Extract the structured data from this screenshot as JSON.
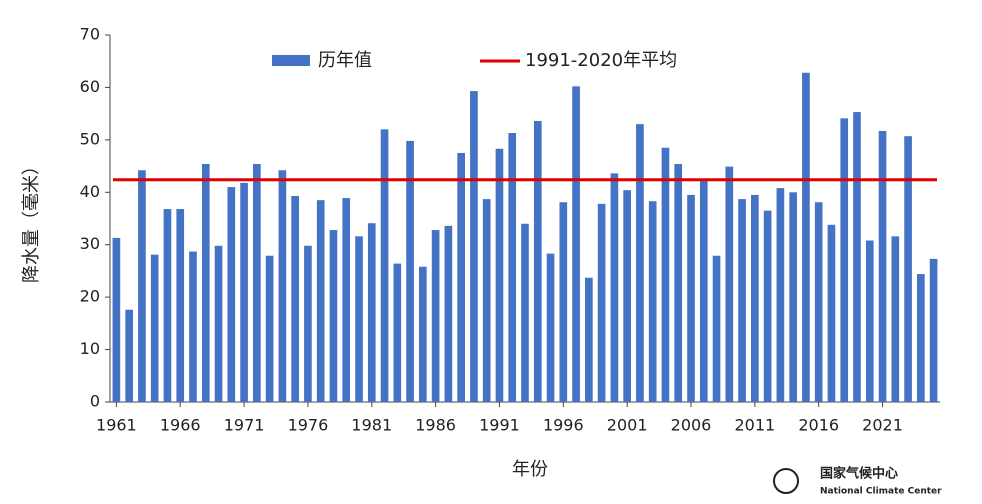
{
  "chart_data": {
    "type": "bar",
    "y_label": "降水量（毫米）",
    "x_label": "年份",
    "categories": [
      "1961",
      null,
      null,
      null,
      null,
      "1966",
      null,
      null,
      null,
      null,
      "1971",
      null,
      null,
      null,
      null,
      "1976",
      null,
      null,
      null,
      null,
      "1981",
      null,
      null,
      null,
      null,
      "1986",
      null,
      null,
      null,
      null,
      "1991",
      null,
      null,
      null,
      null,
      "1996",
      null,
      null,
      null,
      null,
      "2001",
      null,
      null,
      null,
      null,
      "2006",
      null,
      null,
      null,
      null,
      "2011",
      null,
      null,
      null,
      null,
      "2016",
      null,
      null,
      null,
      null,
      "2021",
      null,
      null,
      null,
      null
    ],
    "series": [
      {
        "name": "历年值",
        "color": "#4472c4",
        "values": [
          31.3,
          17.6,
          44.2,
          28.1,
          36.8,
          36.8,
          28.7,
          45.4,
          29.8,
          41.0,
          41.8,
          45.4,
          27.9,
          44.2,
          39.3,
          29.8,
          38.5,
          32.8,
          38.9,
          31.6,
          34.1,
          52.0,
          26.4,
          49.8,
          25.8,
          32.8,
          33.6,
          47.5,
          59.3,
          38.7,
          48.3,
          51.3,
          34.0,
          53.6,
          28.3,
          38.1,
          60.2,
          23.7,
          37.8,
          43.6,
          40.4,
          53.0,
          38.3,
          48.5,
          45.4,
          39.5,
          42.2,
          27.9,
          44.9,
          38.7,
          39.5,
          36.5,
          40.8,
          40.0,
          62.8,
          38.1,
          33.8,
          54.1,
          55.3,
          30.8,
          51.7,
          31.6,
          50.7,
          24.4,
          27.3
        ]
      }
    ],
    "average": {
      "name": "1991-2020年平均",
      "value": 42.4,
      "color": "#e00000"
    },
    "ylim": [
      0,
      70
    ],
    "yticks": [
      0,
      10,
      20,
      30,
      40,
      50,
      60,
      70
    ],
    "source": {
      "name": "国家气候中心",
      "name_en": "National Climate Center"
    }
  }
}
